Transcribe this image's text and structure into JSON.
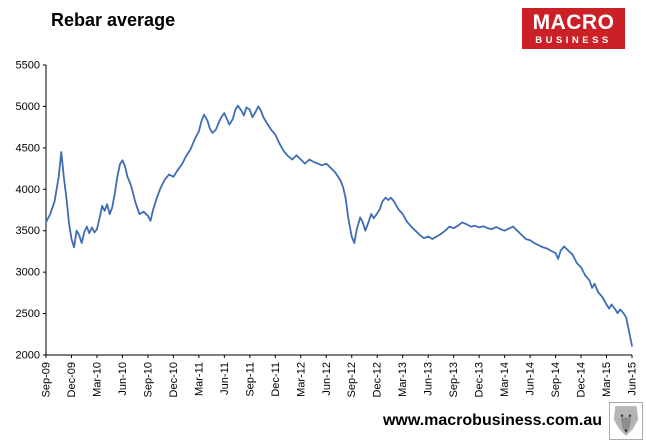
{
  "page": {
    "title": "Rebar average",
    "footer_url": "www.macrobusiness.com.au"
  },
  "logo": {
    "line1": "MACRO",
    "line2": "BUSINESS",
    "bg_color": "#cb2026",
    "text_color": "#ffffff"
  },
  "chart_data": {
    "type": "line",
    "title": "Rebar average",
    "xlabel": "",
    "ylabel": "",
    "grid": false,
    "legend": "none",
    "xlim": [
      0,
      69
    ],
    "ylim": [
      2000,
      5500
    ],
    "ytick_step": 500,
    "x_unit": "months since Sep-09",
    "x_tick_positions": [
      0,
      3,
      6,
      9,
      12,
      15,
      18,
      21,
      24,
      27,
      30,
      33,
      36,
      39,
      42,
      45,
      48,
      51,
      54,
      57,
      60,
      63,
      66,
      69
    ],
    "x_tick_labels": [
      "Sep-09",
      "Dec-09",
      "Mar-10",
      "Jun-10",
      "Sep-10",
      "Dec-10",
      "Mar-11",
      "Jun-11",
      "Sep-11",
      "Dec-11",
      "Mar-12",
      "Jun-12",
      "Sep-12",
      "Dec-12",
      "Mar-13",
      "Jun-13",
      "Sep-13",
      "Dec-13",
      "Mar-14",
      "Jun-14",
      "Sep-14",
      "Dec-14",
      "Mar-15",
      "Jun-15"
    ],
    "series": [
      {
        "name": "Rebar average",
        "color": "#3f6db5",
        "points": [
          [
            0,
            3600
          ],
          [
            0.5,
            3700
          ],
          [
            1,
            3850
          ],
          [
            1.5,
            4150
          ],
          [
            1.8,
            4450
          ],
          [
            2.1,
            4150
          ],
          [
            2.4,
            3900
          ],
          [
            2.7,
            3600
          ],
          [
            3,
            3400
          ],
          [
            3.3,
            3300
          ],
          [
            3.6,
            3500
          ],
          [
            3.9,
            3450
          ],
          [
            4.2,
            3350
          ],
          [
            4.5,
            3480
          ],
          [
            4.8,
            3550
          ],
          [
            5.1,
            3470
          ],
          [
            5.4,
            3540
          ],
          [
            5.7,
            3480
          ],
          [
            6,
            3520
          ],
          [
            6.3,
            3650
          ],
          [
            6.6,
            3800
          ],
          [
            6.9,
            3740
          ],
          [
            7.2,
            3820
          ],
          [
            7.5,
            3700
          ],
          [
            7.8,
            3780
          ],
          [
            8.1,
            3950
          ],
          [
            8.4,
            4150
          ],
          [
            8.7,
            4300
          ],
          [
            9,
            4350
          ],
          [
            9.3,
            4280
          ],
          [
            9.6,
            4150
          ],
          [
            10,
            4050
          ],
          [
            10.5,
            3850
          ],
          [
            11,
            3700
          ],
          [
            11.5,
            3730
          ],
          [
            12,
            3680
          ],
          [
            12.3,
            3620
          ],
          [
            12.6,
            3750
          ],
          [
            13,
            3880
          ],
          [
            13.5,
            4020
          ],
          [
            14,
            4120
          ],
          [
            14.5,
            4180
          ],
          [
            15,
            4150
          ],
          [
            15.5,
            4230
          ],
          [
            16,
            4300
          ],
          [
            16.5,
            4400
          ],
          [
            17,
            4480
          ],
          [
            17.5,
            4600
          ],
          [
            18,
            4700
          ],
          [
            18.3,
            4820
          ],
          [
            18.6,
            4900
          ],
          [
            19,
            4830
          ],
          [
            19.3,
            4730
          ],
          [
            19.6,
            4680
          ],
          [
            20,
            4720
          ],
          [
            20.4,
            4820
          ],
          [
            20.7,
            4880
          ],
          [
            21,
            4920
          ],
          [
            21.3,
            4850
          ],
          [
            21.6,
            4780
          ],
          [
            22,
            4850
          ],
          [
            22.3,
            4960
          ],
          [
            22.6,
            5010
          ],
          [
            23,
            4950
          ],
          [
            23.3,
            4890
          ],
          [
            23.6,
            4990
          ],
          [
            24,
            4960
          ],
          [
            24.3,
            4870
          ],
          [
            24.6,
            4920
          ],
          [
            25,
            5000
          ],
          [
            25.3,
            4950
          ],
          [
            25.6,
            4870
          ],
          [
            26,
            4800
          ],
          [
            26.5,
            4720
          ],
          [
            27,
            4660
          ],
          [
            27.5,
            4550
          ],
          [
            28,
            4460
          ],
          [
            28.5,
            4400
          ],
          [
            29,
            4360
          ],
          [
            29.5,
            4410
          ],
          [
            30,
            4360
          ],
          [
            30.5,
            4310
          ],
          [
            31,
            4360
          ],
          [
            31.5,
            4330
          ],
          [
            32,
            4310
          ],
          [
            32.5,
            4290
          ],
          [
            33,
            4310
          ],
          [
            33.5,
            4260
          ],
          [
            34,
            4210
          ],
          [
            34.4,
            4150
          ],
          [
            34.7,
            4100
          ],
          [
            35,
            4020
          ],
          [
            35.3,
            3880
          ],
          [
            35.6,
            3650
          ],
          [
            36,
            3430
          ],
          [
            36.3,
            3350
          ],
          [
            36.6,
            3520
          ],
          [
            37,
            3660
          ],
          [
            37.3,
            3600
          ],
          [
            37.6,
            3500
          ],
          [
            38,
            3610
          ],
          [
            38.3,
            3700
          ],
          [
            38.6,
            3650
          ],
          [
            39,
            3710
          ],
          [
            39.3,
            3760
          ],
          [
            39.6,
            3850
          ],
          [
            40,
            3900
          ],
          [
            40.3,
            3870
          ],
          [
            40.6,
            3900
          ],
          [
            41,
            3850
          ],
          [
            41.5,
            3760
          ],
          [
            42,
            3700
          ],
          [
            42.5,
            3610
          ],
          [
            43,
            3550
          ],
          [
            43.5,
            3500
          ],
          [
            44,
            3450
          ],
          [
            44.5,
            3410
          ],
          [
            45,
            3430
          ],
          [
            45.5,
            3400
          ],
          [
            46,
            3430
          ],
          [
            46.5,
            3460
          ],
          [
            47,
            3500
          ],
          [
            47.5,
            3550
          ],
          [
            48,
            3530
          ],
          [
            48.5,
            3560
          ],
          [
            49,
            3600
          ],
          [
            49.5,
            3580
          ],
          [
            50,
            3550
          ],
          [
            50.5,
            3560
          ],
          [
            51,
            3540
          ],
          [
            51.5,
            3555
          ],
          [
            52,
            3530
          ],
          [
            52.5,
            3520
          ],
          [
            53,
            3545
          ],
          [
            53.5,
            3520
          ],
          [
            54,
            3500
          ],
          [
            54.5,
            3525
          ],
          [
            55,
            3550
          ],
          [
            55.5,
            3500
          ],
          [
            56,
            3450
          ],
          [
            56.5,
            3400
          ],
          [
            57,
            3385
          ],
          [
            57.5,
            3350
          ],
          [
            58,
            3325
          ],
          [
            58.5,
            3300
          ],
          [
            59,
            3285
          ],
          [
            59.5,
            3255
          ],
          [
            60,
            3230
          ],
          [
            60.3,
            3160
          ],
          [
            60.6,
            3260
          ],
          [
            61,
            3310
          ],
          [
            61.5,
            3260
          ],
          [
            62,
            3210
          ],
          [
            62.5,
            3110
          ],
          [
            63,
            3060
          ],
          [
            63.5,
            2960
          ],
          [
            64,
            2900
          ],
          [
            64.3,
            2810
          ],
          [
            64.6,
            2860
          ],
          [
            65,
            2760
          ],
          [
            65.5,
            2700
          ],
          [
            66,
            2610
          ],
          [
            66.3,
            2560
          ],
          [
            66.6,
            2610
          ],
          [
            67,
            2555
          ],
          [
            67.3,
            2505
          ],
          [
            67.6,
            2550
          ],
          [
            68,
            2505
          ],
          [
            68.3,
            2455
          ],
          [
            68.6,
            2310
          ],
          [
            69,
            2110
          ]
        ]
      }
    ]
  }
}
